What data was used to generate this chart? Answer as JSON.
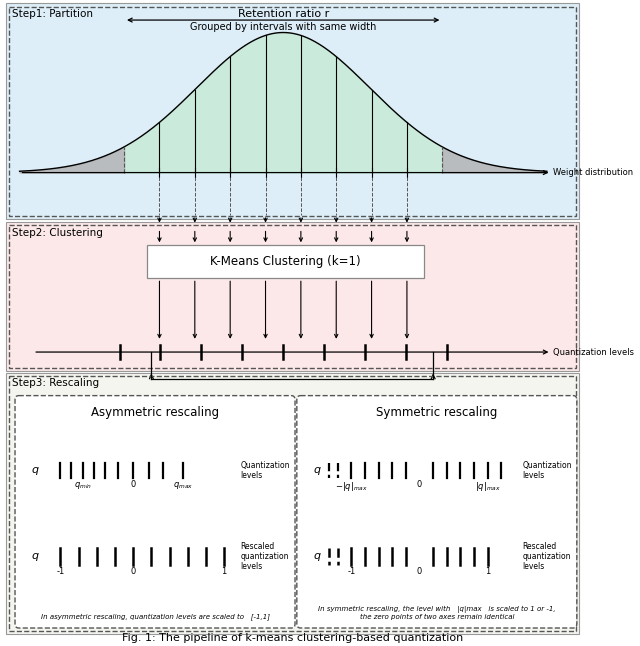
{
  "title": "Fig. 1: The pipeline of k-means clustering-based quantization",
  "step1_label": "Step1: Partition",
  "step2_label": "Step2: Clustering",
  "step3_label": "Step3: Rescaling",
  "step1_bg": "#ddeef8",
  "step2_bg": "#fce8e8",
  "step3_bg": "#f5f5f0",
  "retention_ratio_text": "Retention ratio r",
  "grouped_text": "Grouped by intervals with same width",
  "weight_dist_text": "Weight distribution",
  "kmeans_text": "K-Means Clustering (k=1)",
  "quant_levels_text": "Quantization levels",
  "asymmetric_title": "Asymmetric rescaling",
  "symmetric_title": "Symmetric rescaling",
  "asym_note": "In asymmetric rescaling, quantization levels are scaled to   [-1,1]",
  "sym_note": "In symmetric rescaling, the level with   |q|max   is scaled to 1 or -1,\nthe zero points of two axes remain identical"
}
